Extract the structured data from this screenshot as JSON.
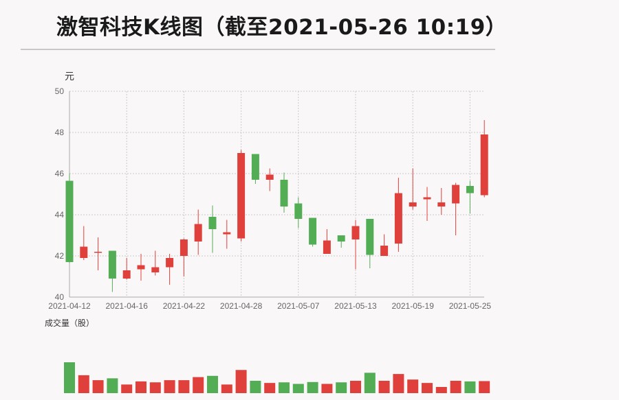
{
  "title": "激智科技K线图（截至2021-05-26 10:19）",
  "colors": {
    "up": "#e0403b",
    "down": "#52ad55",
    "grid": "#c9c9c9",
    "axis": "#aaaaaa"
  },
  "chart_data": {
    "type": "candlestick",
    "ylabel": "元",
    "ylim": [
      40,
      50
    ],
    "yticks": [
      40,
      42,
      44,
      46,
      48,
      50
    ],
    "xtick_labels": [
      "2021-04-12",
      "2021-04-16",
      "2021-04-22",
      "2021-04-28",
      "2021-05-07",
      "2021-05-13",
      "2021-05-19",
      "2021-05-25"
    ],
    "xtick_indices": [
      0,
      4,
      8,
      12,
      16,
      20,
      24,
      28
    ],
    "volume_label": "成交量（股）",
    "grid": true,
    "candles": [
      {
        "o": 45.65,
        "c": 41.7,
        "h": 46.0,
        "l": 41.65,
        "v": 100
      },
      {
        "o": 41.9,
        "c": 42.45,
        "h": 43.45,
        "l": 41.8,
        "v": 58
      },
      {
        "o": 42.2,
        "c": 42.2,
        "h": 42.9,
        "l": 41.3,
        "v": 42
      },
      {
        "o": 42.25,
        "c": 40.9,
        "h": 42.25,
        "l": 40.25,
        "v": 48
      },
      {
        "o": 40.9,
        "c": 41.3,
        "h": 41.9,
        "l": 40.85,
        "v": 28
      },
      {
        "o": 41.35,
        "c": 41.55,
        "h": 42.1,
        "l": 40.8,
        "v": 38
      },
      {
        "o": 41.2,
        "c": 41.45,
        "h": 42.25,
        "l": 41.05,
        "v": 35
      },
      {
        "o": 41.45,
        "c": 41.9,
        "h": 42.1,
        "l": 40.6,
        "v": 42
      },
      {
        "o": 42.0,
        "c": 42.8,
        "h": 42.85,
        "l": 41.0,
        "v": 42
      },
      {
        "o": 42.7,
        "c": 43.55,
        "h": 44.25,
        "l": 42.05,
        "v": 52
      },
      {
        "o": 43.9,
        "c": 43.3,
        "h": 44.45,
        "l": 42.15,
        "v": 56
      },
      {
        "o": 43.05,
        "c": 43.15,
        "h": 43.75,
        "l": 42.35,
        "v": 28
      },
      {
        "o": 42.85,
        "c": 47.0,
        "h": 47.15,
        "l": 42.7,
        "v": 75
      },
      {
        "o": 46.95,
        "c": 45.7,
        "h": 46.95,
        "l": 45.5,
        "v": 40
      },
      {
        "o": 45.7,
        "c": 45.95,
        "h": 46.25,
        "l": 45.15,
        "v": 33
      },
      {
        "o": 45.7,
        "c": 44.4,
        "h": 46.05,
        "l": 44.1,
        "v": 35
      },
      {
        "o": 44.55,
        "c": 43.8,
        "h": 44.85,
        "l": 43.35,
        "v": 30
      },
      {
        "o": 43.85,
        "c": 42.55,
        "h": 43.85,
        "l": 42.45,
        "v": 36
      },
      {
        "o": 42.1,
        "c": 42.75,
        "h": 43.3,
        "l": 42.1,
        "v": 30
      },
      {
        "o": 43.0,
        "c": 42.7,
        "h": 43.0,
        "l": 42.4,
        "v": 35
      },
      {
        "o": 42.8,
        "c": 43.45,
        "h": 43.75,
        "l": 41.35,
        "v": 40
      },
      {
        "o": 43.8,
        "c": 42.05,
        "h": 43.8,
        "l": 41.4,
        "v": 66
      },
      {
        "o": 42.0,
        "c": 42.5,
        "h": 43.05,
        "l": 42.0,
        "v": 40
      },
      {
        "o": 42.6,
        "c": 45.05,
        "h": 45.8,
        "l": 42.2,
        "v": 62
      },
      {
        "o": 44.4,
        "c": 44.6,
        "h": 46.25,
        "l": 44.25,
        "v": 44
      },
      {
        "o": 44.75,
        "c": 44.85,
        "h": 45.35,
        "l": 43.7,
        "v": 33
      },
      {
        "o": 44.4,
        "c": 44.6,
        "h": 45.3,
        "l": 44.0,
        "v": 20
      },
      {
        "o": 44.55,
        "c": 45.45,
        "h": 45.55,
        "l": 43.0,
        "v": 40
      },
      {
        "o": 45.4,
        "c": 45.05,
        "h": 45.65,
        "l": 44.05,
        "v": 38
      },
      {
        "o": 44.95,
        "c": 47.9,
        "h": 48.6,
        "l": 44.85,
        "v": 39
      }
    ]
  }
}
